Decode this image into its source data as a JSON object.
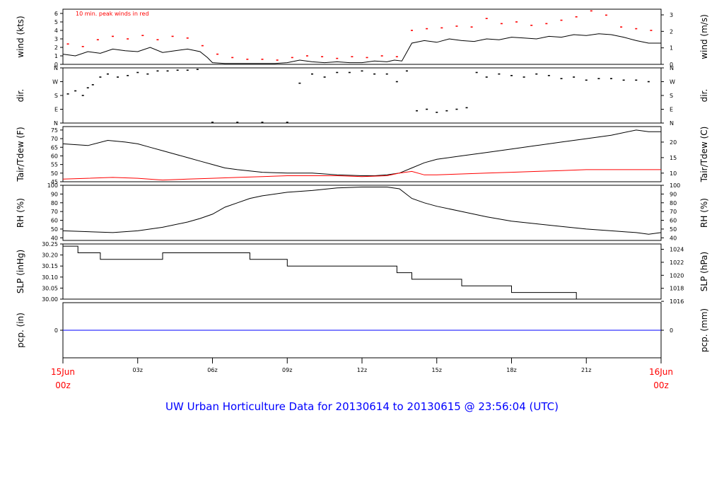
{
  "title": "UW Urban Horticulture Data for 20130614  to  20130615 @ 23:56:04  (UTC)",
  "colors": {
    "trace": "#000000",
    "peak": "#ff0000",
    "dew": "#ff0000",
    "precip": "#0000ff",
    "title": "#0000ff",
    "time_ends": "#ff0000"
  },
  "x_axis": {
    "range_hours": [
      0,
      24
    ],
    "ticks": [
      {
        "h": 3,
        "label": "03z"
      },
      {
        "h": 6,
        "label": "06z"
      },
      {
        "h": 9,
        "label": "09z"
      },
      {
        "h": 12,
        "label": "12z"
      },
      {
        "h": 15,
        "label": "15z"
      },
      {
        "h": 18,
        "label": "18z"
      },
      {
        "h": 21,
        "label": "21z"
      }
    ],
    "start_label": [
      "15Jun",
      "00z"
    ],
    "end_label": [
      "16Jun",
      "00z"
    ]
  },
  "chart_data": [
    {
      "id": "wind",
      "type": "line",
      "ylabel_left": "wind (kts)",
      "ylabel_right": "wind (m/s)",
      "annotation": "10 min. peak winds in red",
      "ylim": [
        0,
        6.5
      ],
      "left_ticks": [
        0,
        1,
        2,
        3,
        4,
        5,
        6
      ],
      "right_ticks": [
        {
          "v": 0,
          "label": "0"
        },
        {
          "v": 1.944,
          "label": "1"
        },
        {
          "v": 3.888,
          "label": "2"
        },
        {
          "v": 5.832,
          "label": "3"
        }
      ],
      "series": [
        {
          "role": "wind_speed_kts",
          "x_hours": [
            0,
            0.5,
            1,
            1.5,
            2,
            2.5,
            3,
            3.5,
            4,
            4.5,
            5,
            5.5,
            5.8,
            6,
            6.5,
            7,
            7.5,
            8,
            8.5,
            9,
            9.5,
            10,
            10.5,
            11,
            11.5,
            12,
            12.5,
            13,
            13.3,
            13.6,
            14,
            14.5,
            15,
            15.5,
            16,
            16.5,
            17,
            17.5,
            18,
            18.5,
            19,
            19.5,
            20,
            20.5,
            21,
            21.5,
            22,
            22.5,
            23,
            23.5,
            24
          ],
          "values": [
            1.2,
            1.0,
            1.5,
            1.3,
            1.8,
            1.6,
            1.5,
            2.0,
            1.4,
            1.6,
            1.8,
            1.5,
            0.8,
            0.2,
            0.1,
            0.1,
            0.1,
            0.1,
            0.1,
            0.2,
            0.5,
            0.3,
            0.2,
            0.3,
            0.2,
            0.2,
            0.4,
            0.3,
            0.5,
            0.4,
            2.5,
            2.8,
            2.6,
            3.0,
            2.8,
            2.7,
            3.0,
            2.9,
            3.2,
            3.1,
            3.0,
            3.3,
            3.2,
            3.5,
            3.4,
            3.6,
            3.5,
            3.2,
            2.8,
            2.5,
            2.5
          ]
        },
        {
          "role": "peak_wind_kts",
          "x_hours": [
            0.2,
            0.8,
            1.4,
            2.0,
            2.6,
            3.2,
            3.8,
            4.4,
            5.0,
            5.6,
            6.2,
            6.8,
            7.4,
            8.0,
            8.6,
            9.2,
            9.8,
            10.4,
            11.0,
            11.6,
            12.2,
            12.8,
            13.4,
            14.0,
            14.6,
            15.2,
            15.8,
            16.4,
            17.0,
            17.6,
            18.2,
            18.8,
            19.4,
            20.0,
            20.6,
            21.2,
            21.8,
            22.4,
            23.0,
            23.6
          ],
          "values": [
            2.4,
            2.1,
            2.9,
            3.3,
            3.0,
            3.4,
            2.9,
            3.3,
            3.1,
            2.2,
            1.2,
            0.8,
            0.6,
            0.6,
            0.5,
            0.8,
            1.0,
            0.9,
            0.7,
            0.9,
            0.8,
            1.0,
            0.9,
            4.0,
            4.2,
            4.3,
            4.5,
            4.4,
            5.4,
            4.8,
            5.0,
            4.6,
            4.8,
            5.2,
            5.6,
            6.3,
            5.8,
            4.4,
            4.2,
            4.0
          ]
        }
      ]
    },
    {
      "id": "dir",
      "type": "scatter",
      "ylabel_left": "dir.",
      "ylabel_right": "dir.",
      "ylim": [
        0,
        360
      ],
      "tick_labels": [
        {
          "v": 0,
          "label": "N"
        },
        {
          "v": 90,
          "label": "E"
        },
        {
          "v": 180,
          "label": "S"
        },
        {
          "v": 270,
          "label": "W"
        },
        {
          "v": 360,
          "label": "N"
        }
      ],
      "series": [
        {
          "role": "direction_deg",
          "x_hours": [
            0.2,
            0.5,
            0.8,
            1.0,
            1.2,
            1.5,
            1.8,
            2.2,
            2.6,
            3.0,
            3.4,
            3.8,
            4.2,
            4.6,
            5.0,
            5.4,
            6.0,
            7.0,
            8.0,
            9.0,
            9.5,
            10.0,
            10.5,
            11.0,
            11.5,
            12.0,
            12.5,
            13.0,
            13.4,
            13.8,
            14.2,
            14.6,
            15.0,
            15.4,
            15.8,
            16.2,
            16.6,
            17.0,
            17.5,
            18.0,
            18.5,
            19.0,
            19.5,
            20.0,
            20.5,
            21.0,
            21.5,
            22.0,
            22.5,
            23.0,
            23.5
          ],
          "values": [
            190,
            210,
            180,
            230,
            250,
            300,
            320,
            300,
            310,
            330,
            320,
            340,
            340,
            345,
            345,
            350,
            5,
            5,
            5,
            5,
            260,
            320,
            300,
            330,
            330,
            340,
            320,
            320,
            270,
            340,
            80,
            90,
            70,
            80,
            90,
            100,
            330,
            300,
            320,
            310,
            300,
            320,
            310,
            290,
            300,
            280,
            290,
            290,
            280,
            280,
            270
          ]
        }
      ]
    },
    {
      "id": "temp",
      "type": "line",
      "ylabel_left": "Tair/Tdew (F)",
      "ylabel_right": "Tair/Tdew (C)",
      "ylim": [
        45,
        77
      ],
      "left_ticks": [
        45,
        50,
        55,
        60,
        65,
        70,
        75
      ],
      "right_ticks": [
        {
          "v": 50,
          "label": "10"
        },
        {
          "v": 59,
          "label": "15"
        },
        {
          "v": 68,
          "label": "20"
        }
      ],
      "series": [
        {
          "role": "air_temp_F",
          "x_hours": [
            0,
            1,
            1.8,
            2.5,
            3,
            3.5,
            4,
            4.5,
            5,
            5.5,
            6,
            6.5,
            7,
            8,
            9,
            10,
            11,
            12,
            12.5,
            13,
            13.5,
            14,
            14.5,
            15,
            16,
            17,
            18,
            19,
            20,
            21,
            22,
            23,
            23.5,
            24
          ],
          "values": [
            67,
            66,
            69,
            68,
            67,
            65,
            63,
            61,
            59,
            57,
            55,
            53,
            52,
            50.5,
            50,
            50,
            49,
            48.5,
            48.5,
            49,
            50,
            53,
            56,
            58,
            60,
            62,
            64,
            66,
            68,
            70,
            72,
            75,
            74,
            74
          ]
        },
        {
          "role": "dew_point_F",
          "x_hours": [
            0,
            1,
            2,
            3,
            4,
            5,
            6,
            7,
            8,
            9,
            10,
            11,
            12,
            13,
            13.5,
            14,
            14.5,
            15,
            16,
            17,
            18,
            19,
            20,
            21,
            22,
            23,
            24
          ],
          "values": [
            46.5,
            47,
            47.5,
            47,
            46,
            46.5,
            47,
            47.5,
            48,
            48.5,
            48.5,
            48.5,
            48,
            48.5,
            50,
            51,
            49,
            49,
            49.5,
            50,
            50.5,
            51,
            51.5,
            52,
            52,
            52,
            52
          ]
        }
      ]
    },
    {
      "id": "rh",
      "type": "line",
      "ylabel_left": "RH (%)",
      "ylabel_right": "RH (%)",
      "ylim": [
        37,
        100
      ],
      "left_ticks": [
        40,
        50,
        60,
        70,
        80,
        90,
        100
      ],
      "right_ticks": [
        {
          "v": 40,
          "label": "40"
        },
        {
          "v": 50,
          "label": "50"
        },
        {
          "v": 60,
          "label": "60"
        },
        {
          "v": 70,
          "label": "70"
        },
        {
          "v": 80,
          "label": "80"
        },
        {
          "v": 90,
          "label": "90"
        },
        {
          "v": 100,
          "label": "100"
        }
      ],
      "series": [
        {
          "role": "relative_humidity_pct",
          "x_hours": [
            0,
            1,
            2,
            3,
            4,
            5,
            5.5,
            6,
            6.5,
            7,
            7.5,
            8,
            9,
            10,
            11,
            12,
            13,
            13.5,
            14,
            14.5,
            15,
            16,
            17,
            18,
            19,
            20,
            21,
            22,
            23,
            23.5,
            24
          ],
          "values": [
            48,
            47,
            46,
            48,
            52,
            58,
            62,
            67,
            75,
            80,
            85,
            88,
            92,
            94,
            97,
            98,
            98,
            96,
            85,
            80,
            76,
            70,
            64,
            59,
            56,
            53,
            50,
            48,
            46,
            44,
            46
          ]
        }
      ]
    },
    {
      "id": "slp",
      "type": "line",
      "ylabel_left": "SLP (inHg)",
      "ylabel_right": "SLP (hPa)",
      "ylim": [
        30.0,
        30.25
      ],
      "left_ticks": [
        30.0,
        30.05,
        30.1,
        30.15,
        30.2,
        30.25
      ],
      "right_ticks": [
        {
          "v": 29.99,
          "label": "1016"
        },
        {
          "v": 30.049,
          "label": "1018"
        },
        {
          "v": 30.108,
          "label": "1020"
        },
        {
          "v": 30.167,
          "label": "1022"
        },
        {
          "v": 30.226,
          "label": "1024"
        }
      ],
      "series": [
        {
          "role": "sea_level_pressure_inHg",
          "x_hours": [
            0,
            0.6,
            0.6,
            1.5,
            1.5,
            4.0,
            4.0,
            7.5,
            7.5,
            9.0,
            9.0,
            13.4,
            13.4,
            14.0,
            14.0,
            16.0,
            16.0,
            18.0,
            18.0,
            20.6,
            20.6,
            24
          ],
          "values": [
            30.24,
            30.24,
            30.21,
            30.21,
            30.18,
            30.18,
            30.21,
            30.21,
            30.18,
            30.18,
            30.15,
            30.15,
            30.12,
            30.12,
            30.09,
            30.09,
            30.06,
            30.06,
            30.03,
            30.03,
            30.0,
            30.0
          ]
        }
      ]
    },
    {
      "id": "pcp",
      "type": "line",
      "ylabel_left": "pcp. (in)",
      "ylabel_right": "pcp. (mm)",
      "ylim": [
        -1,
        1
      ],
      "left_ticks": [
        0
      ],
      "right_ticks": [
        {
          "v": 0,
          "label": "0"
        }
      ],
      "series": [
        {
          "role": "precipitation_in",
          "x_hours": [
            0,
            24
          ],
          "values": [
            0,
            0
          ]
        }
      ]
    }
  ]
}
